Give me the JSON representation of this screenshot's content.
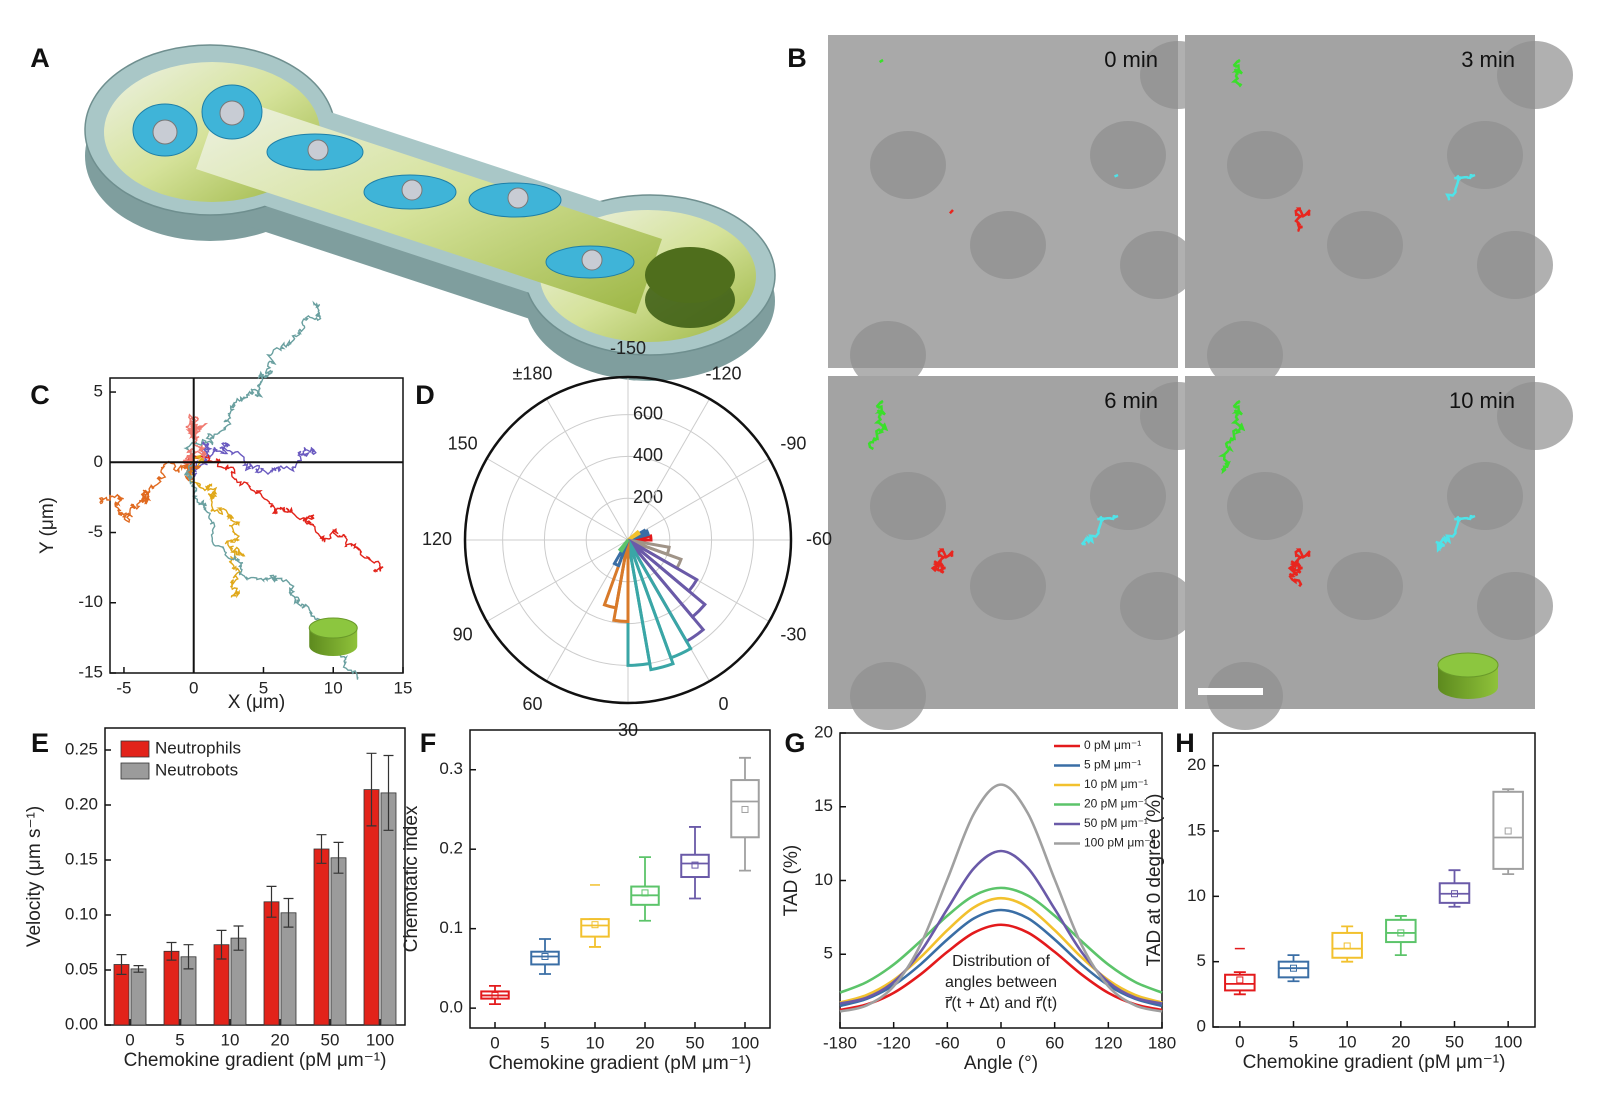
{
  "panel_labels": [
    "A",
    "B",
    "C",
    "D",
    "E",
    "F",
    "G",
    "H"
  ],
  "panel_b": {
    "times": [
      "0 min",
      "3 min",
      "6 min",
      "10 min"
    ]
  },
  "chart_data": [
    {
      "type": "trajectory",
      "xlabel": "X (μm)",
      "ylabel": "Y (μm)",
      "xlim": [
        -6,
        15
      ],
      "ylim": [
        -15,
        6
      ],
      "xticks": [
        -5,
        0,
        5,
        10,
        15
      ],
      "yticks": [
        5,
        0,
        -5,
        -10,
        -15
      ]
    },
    {
      "type": "rose",
      "rlim": [
        0,
        780
      ],
      "rticks": [
        200,
        400,
        600
      ],
      "bin_width": 10,
      "angle_ticks": [
        {
          "value": 180,
          "label": "±180"
        },
        -150,
        -120,
        -90,
        -60,
        -30,
        0,
        30,
        60,
        90,
        120,
        150
      ],
      "angles": [
        -75,
        -65,
        -85,
        -80,
        -95,
        -45,
        -35,
        -25,
        -15,
        -5,
        5,
        15,
        25,
        35,
        45,
        55,
        65
      ],
      "values": [
        90,
        110,
        90,
        100,
        60,
        200,
        270,
        380,
        480,
        560,
        600,
        630,
        600,
        390,
        330,
        130,
        60
      ],
      "colors": [
        "#e31a1c",
        "#e31a1c",
        "#3a6ea5",
        "#3a6ea5",
        "#f2c12e",
        "#a09488",
        "#a09488",
        "#6a5aa8",
        "#6a5aa8",
        "#6a5aa8",
        "#3aa6a6",
        "#3aa6a6",
        "#3aa6a6",
        "#d87a2a",
        "#d87a2a",
        "#3a6ea5",
        "#5cc46a"
      ]
    },
    {
      "type": "bar",
      "xlabel": "Chemokine gradient (pM μm⁻¹)",
      "ylabel": "Velocity (μm s⁻¹)",
      "categories": [
        "0",
        "5",
        "10",
        "20",
        "50",
        "100"
      ],
      "legend": "upper left",
      "series": [
        {
          "name": "Neutrophils",
          "color": "#e2231a",
          "values": [
            0.055,
            0.067,
            0.073,
            0.112,
            0.16,
            0.214
          ],
          "errors": [
            0.009,
            0.008,
            0.013,
            0.014,
            0.013,
            0.033
          ]
        },
        {
          "name": "Neutrobots",
          "color": "#9b9b9b",
          "values": [
            0.051,
            0.062,
            0.079,
            0.102,
            0.152,
            0.211
          ],
          "errors": [
            0.003,
            0.011,
            0.011,
            0.013,
            0.014,
            0.034
          ]
        }
      ],
      "ylim": [
        0,
        0.27
      ],
      "yticks": [
        {
          "value": 0,
          "label": "0.00"
        },
        0.05,
        {
          "value": 0.1,
          "label": "0.10"
        },
        0.15,
        {
          "value": 0.2,
          "label": "0.20"
        },
        0.25
      ]
    },
    {
      "type": "box",
      "xlabel": "Chemokine gradient (pM μm⁻¹)",
      "ylabel": "Chemotatic index",
      "categories": [
        "0",
        "5",
        "10",
        "20",
        "50",
        "100"
      ],
      "colors": [
        "#e31a1c",
        "#3a6ea5",
        "#f2c12e",
        "#5cc46a",
        "#6a5aa8",
        "#a0a0a0"
      ],
      "min": [
        0.005,
        0.043,
        0.077,
        0.11,
        0.138,
        0.173
      ],
      "q1": [
        0.012,
        0.055,
        0.09,
        0.13,
        0.165,
        0.215
      ],
      "median": [
        0.016,
        0.065,
        0.104,
        0.142,
        0.182,
        0.26
      ],
      "q3": [
        0.021,
        0.071,
        0.112,
        0.153,
        0.193,
        0.287
      ],
      "max": [
        0.028,
        0.087,
        0.112,
        0.19,
        0.228,
        0.315
      ],
      "mean": [
        0.016,
        0.065,
        0.105,
        0.145,
        0.18,
        0.25
      ],
      "outliers": [
        null,
        null,
        0.155,
        null,
        null,
        null
      ],
      "ylim": [
        -0.025,
        0.35
      ],
      "yticks": [
        {
          "value": 0,
          "label": "0.0"
        },
        0.1,
        0.2,
        0.3
      ]
    },
    {
      "type": "line",
      "xlabel": "Angle (°)",
      "ylabel": "TAD (%)",
      "legend": "upper right",
      "annotation": [
        "Distribution of",
        "angles between",
        "r⃗(t + Δt) and r⃗(t)"
      ],
      "x": [
        -180,
        -150,
        -120,
        -90,
        -60,
        -30,
        0,
        30,
        60,
        90,
        120,
        150,
        180
      ],
      "series": [
        {
          "name": "0 pM μm⁻¹",
          "color": "#e31a1c",
          "values": [
            1.22,
            1.6,
            2.38,
            3.63,
            5.16,
            6.47,
            7.0,
            6.47,
            5.16,
            3.63,
            2.38,
            1.6,
            1.22
          ]
        },
        {
          "name": "5 pM μm⁻¹",
          "color": "#3a6ea5",
          "values": [
            1.5,
            1.98,
            2.9,
            4.31,
            6.0,
            7.44,
            8.0,
            7.44,
            6.0,
            4.31,
            2.9,
            1.98,
            1.5
          ]
        },
        {
          "name": "10 pM μm⁻¹",
          "color": "#f2c12e",
          "values": [
            1.73,
            2.24,
            3.25,
            4.79,
            6.63,
            8.19,
            8.8,
            8.19,
            6.63,
            4.79,
            3.25,
            2.24,
            1.73
          ]
        },
        {
          "name": "20 pM μm⁻¹",
          "color": "#5cc46a",
          "values": [
            2.4,
            3.12,
            4.3,
            5.89,
            7.61,
            8.98,
            9.5,
            8.98,
            7.61,
            5.89,
            4.3,
            3.12,
            2.4
          ]
        },
        {
          "name": "50 pM μm⁻¹",
          "color": "#6a5aa8",
          "values": [
            1.66,
            2.06,
            3.12,
            5.16,
            8.07,
            10.85,
            12.0,
            10.85,
            8.07,
            5.16,
            3.12,
            2.06,
            1.66
          ]
        },
        {
          "name": "100 pM μm⁻¹",
          "color": "#a0a0a0",
          "values": [
            1.12,
            1.54,
            2.83,
            5.65,
            10.08,
            14.56,
            16.5,
            14.56,
            10.08,
            5.65,
            2.83,
            1.54,
            1.12
          ]
        }
      ],
      "xlim": [
        -180,
        180
      ],
      "ylim": [
        0,
        20
      ],
      "xticks": [
        -180,
        -120,
        -60,
        0,
        60,
        120,
        180
      ],
      "yticks": [
        5,
        10,
        15,
        20
      ]
    },
    {
      "type": "box",
      "xlabel": "Chemokine gradient (pM μm⁻¹)",
      "ylabel": "TAD at 0 degree (%)",
      "categories": [
        "0",
        "5",
        "10",
        "20",
        "50",
        "100"
      ],
      "colors": [
        "#e31a1c",
        "#3a6ea5",
        "#f2c12e",
        "#5cc46a",
        "#6a5aa8",
        "#a0a0a0"
      ],
      "min": [
        2.5,
        3.5,
        5.0,
        5.5,
        9.2,
        11.7
      ],
      "q1": [
        2.8,
        3.8,
        5.3,
        6.5,
        9.5,
        12.1
      ],
      "median": [
        3.3,
        4.5,
        6.0,
        7.2,
        10.2,
        14.5
      ],
      "q3": [
        4.0,
        5.0,
        7.2,
        8.2,
        11.0,
        18.0
      ],
      "max": [
        4.2,
        5.5,
        7.7,
        8.5,
        12.0,
        18.2
      ],
      "mean": [
        3.6,
        4.5,
        6.2,
        7.2,
        10.2,
        15.0
      ],
      "outliers": [
        6,
        null,
        null,
        null,
        null,
        null
      ],
      "ylim": [
        0,
        22.5
      ],
      "yticks": [
        0,
        5,
        10,
        15,
        20
      ]
    }
  ]
}
